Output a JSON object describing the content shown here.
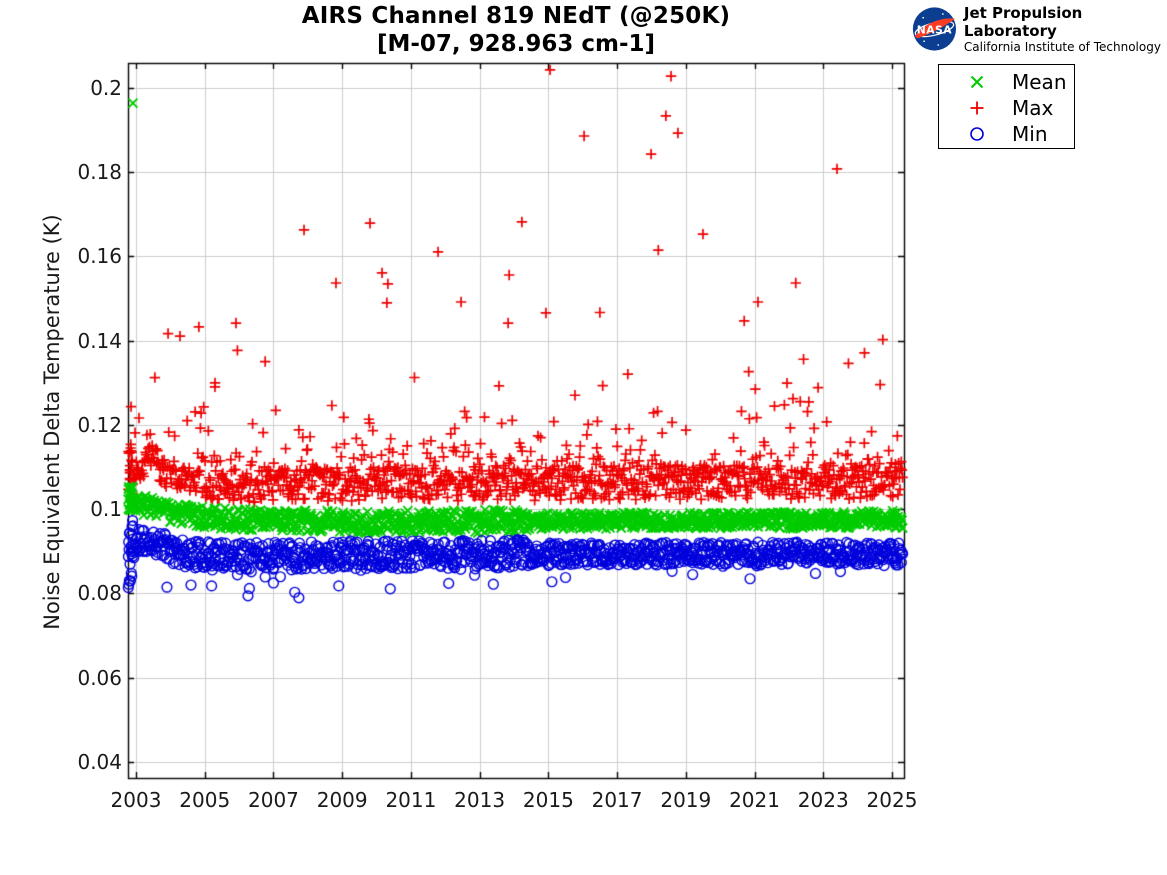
{
  "header": {
    "title": "AIRS Channel 819 NEdT (@250K)",
    "subtitle": "[M-07, 928.963 cm-1]"
  },
  "branding": {
    "agency": "NASA",
    "org_line1": "Jet Propulsion Laboratory",
    "org_line2": "California Institute of Technology",
    "logo_blue": "#0b3d91",
    "logo_red": "#fc3d21"
  },
  "legend": {
    "items": [
      {
        "label": "Mean",
        "marker": "x",
        "color": "#00cc00"
      },
      {
        "label": "Max",
        "marker": "plus",
        "color": "#ee0000"
      },
      {
        "label": "Min",
        "marker": "circle",
        "color": "#0000dd"
      }
    ]
  },
  "chart_data": {
    "type": "scatter",
    "title": "AIRS Channel 819 NEdT (@250K)",
    "subtitle": "[M-07, 928.963 cm-1]",
    "xlabel": "",
    "ylabel": "Noise Equivalent Delta Temperature (K)",
    "xlim": [
      2002.767,
      2025.35
    ],
    "ylim": [
      0.0362,
      0.20593
    ],
    "xticks": [
      2003,
      2005,
      2007,
      2009,
      2011,
      2013,
      2015,
      2017,
      2019,
      2021,
      2023,
      2025
    ],
    "yticks": [
      0.04,
      0.06,
      0.08,
      0.1,
      0.12,
      0.14,
      0.16,
      0.18,
      0.2
    ],
    "grid": true,
    "grid_color": "#cccccc",
    "axis_color": "#000000",
    "legend_position": "upper right, outside axes",
    "sampling": {
      "start": 2002.77,
      "end": 2025.32,
      "per_year": 52,
      "startup_until": 2002.92,
      "startup_extra": 14
    },
    "series": [
      {
        "name": "Max",
        "marker": "plus",
        "color": "#ee0000",
        "seed": 7,
        "trend": [
          [
            2002.77,
            0.111
          ],
          [
            2003.05,
            0.1085
          ],
          [
            2003.45,
            0.1118
          ],
          [
            2003.9,
            0.1075
          ],
          [
            2004.6,
            0.106
          ],
          [
            2006,
            0.1055
          ],
          [
            2008,
            0.1058
          ],
          [
            2010,
            0.106
          ],
          [
            2012,
            0.1058
          ],
          [
            2014,
            0.106
          ],
          [
            2016,
            0.1063
          ],
          [
            2018,
            0.1063
          ],
          [
            2020,
            0.1065
          ],
          [
            2022,
            0.1066
          ],
          [
            2025.32,
            0.1068
          ]
        ],
        "jitter": [
          [
            2002.77,
            0.0036
          ],
          [
            2004,
            0.0038
          ],
          [
            2010,
            0.004
          ],
          [
            2014.4,
            0.004
          ],
          [
            2025.32,
            0.0043
          ]
        ],
        "startup_jitter": 0.0065,
        "tail": {
          "dir": 1,
          "prob": 0.3,
          "mean": 0.006,
          "cap": 0.036
        },
        "outliers": [
          [
            2004.28,
            0.1411
          ],
          [
            2004.83,
            0.1433
          ],
          [
            2005.3,
            0.13
          ],
          [
            2005.91,
            0.1442
          ],
          [
            2007.89,
            0.1663
          ],
          [
            2008.82,
            0.1537
          ],
          [
            2009.81,
            0.1679
          ],
          [
            2010.16,
            0.1561
          ],
          [
            2010.3,
            0.149
          ],
          [
            2010.33,
            0.1535
          ],
          [
            2011.79,
            0.1611
          ],
          [
            2012.46,
            0.1492
          ],
          [
            2013.83,
            0.1442
          ],
          [
            2013.86,
            0.1556
          ],
          [
            2014.23,
            0.1682
          ],
          [
            2014.93,
            0.1466
          ],
          [
            2015.05,
            0.2043
          ],
          [
            2016.04,
            0.1886
          ],
          [
            2016.5,
            0.1467
          ],
          [
            2017.99,
            0.1843
          ],
          [
            2018.2,
            0.1615
          ],
          [
            2018.42,
            0.1934
          ],
          [
            2018.57,
            0.2028
          ],
          [
            2018.77,
            0.1893
          ],
          [
            2019.5,
            0.1653
          ],
          [
            2020.7,
            0.1447
          ],
          [
            2021.1,
            0.1492
          ],
          [
            2022.2,
            0.1537
          ],
          [
            2023.4,
            0.1808
          ],
          [
            2024.2,
            0.1371
          ]
        ]
      },
      {
        "name": "Mean",
        "marker": "x",
        "color": "#00cc00",
        "seed": 3,
        "trend": [
          [
            2002.77,
            0.1033
          ],
          [
            2003.1,
            0.1008
          ],
          [
            2003.4,
            0.1012
          ],
          [
            2003.9,
            0.0993
          ],
          [
            2004.6,
            0.0984
          ],
          [
            2005.5,
            0.0978
          ],
          [
            2007,
            0.0973
          ],
          [
            2009,
            0.097
          ],
          [
            2011,
            0.097
          ],
          [
            2013,
            0.0971
          ],
          [
            2014.3,
            0.0972
          ],
          [
            2016,
            0.0972
          ],
          [
            2018,
            0.0973
          ],
          [
            2020,
            0.0973
          ],
          [
            2022,
            0.0974
          ],
          [
            2025.32,
            0.0976
          ]
        ],
        "jitter": [
          [
            2002.77,
            0.0024
          ],
          [
            2008,
            0.0026
          ],
          [
            2014.2,
            0.0028
          ],
          [
            2014.5,
            0.0019
          ],
          [
            2025.32,
            0.0021
          ]
        ],
        "startup_jitter": 0.0035,
        "tail": null,
        "outliers": [
          [
            2002.91,
            0.1964
          ]
        ]
      },
      {
        "name": "Min",
        "marker": "circle",
        "color": "#0000dd",
        "seed": 11,
        "trend": [
          [
            2002.77,
            0.0885
          ],
          [
            2003.15,
            0.093
          ],
          [
            2003.6,
            0.0922
          ],
          [
            2004.2,
            0.0898
          ],
          [
            2005,
            0.089
          ],
          [
            2007,
            0.089
          ],
          [
            2009,
            0.0892
          ],
          [
            2011,
            0.0892
          ],
          [
            2013,
            0.0893
          ],
          [
            2014.3,
            0.0897
          ],
          [
            2014.5,
            0.0892
          ],
          [
            2017,
            0.0894
          ],
          [
            2020,
            0.0895
          ],
          [
            2025.32,
            0.0893
          ]
        ],
        "jitter": [
          [
            2002.77,
            0.003
          ],
          [
            2005,
            0.0033
          ],
          [
            2010,
            0.0033
          ],
          [
            2014.2,
            0.0034
          ],
          [
            2014.5,
            0.0027
          ],
          [
            2025.32,
            0.0028
          ]
        ],
        "startup_jitter": 0.0075,
        "tail": {
          "dir": -1,
          "prob": 0.06,
          "mean": 0.0018,
          "cap": 0.008
        },
        "outliers": [
          [
            2003.9,
            0.0815
          ],
          [
            2004.6,
            0.082
          ],
          [
            2005.2,
            0.0818
          ],
          [
            2006.3,
            0.0812
          ],
          [
            2007.0,
            0.0825
          ],
          [
            2007.62,
            0.0803
          ],
          [
            2008.9,
            0.0818
          ],
          [
            2010.4,
            0.0811
          ],
          [
            2012.1,
            0.0824
          ],
          [
            2013.4,
            0.0822
          ],
          [
            2015.5,
            0.0838
          ],
          [
            2019.2,
            0.0845
          ],
          [
            2023.5,
            0.0852
          ]
        ]
      }
    ]
  }
}
